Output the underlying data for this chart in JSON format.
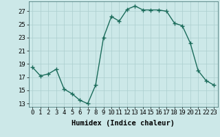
{
  "x": [
    0,
    1,
    2,
    3,
    4,
    5,
    6,
    7,
    8,
    9,
    10,
    11,
    12,
    13,
    14,
    15,
    16,
    17,
    18,
    19,
    20,
    21,
    22,
    23
  ],
  "y": [
    18.5,
    17.2,
    17.5,
    18.2,
    15.2,
    14.5,
    13.5,
    13.0,
    15.8,
    23.0,
    26.2,
    25.5,
    27.3,
    27.8,
    27.2,
    27.2,
    27.2,
    27.0,
    25.2,
    24.8,
    22.2,
    18.0,
    16.5,
    15.8
  ],
  "line_color": "#1a6b5a",
  "marker": "+",
  "marker_size": 4,
  "marker_lw": 1.0,
  "bg_color": "#cce8e8",
  "grid_color": "#aacece",
  "xlabel": "Humidex (Indice chaleur)",
  "xlim": [
    -0.5,
    23.5
  ],
  "ylim": [
    12.5,
    28.5
  ],
  "yticks": [
    13,
    15,
    17,
    19,
    21,
    23,
    25,
    27
  ],
  "xticks": [
    0,
    1,
    2,
    3,
    4,
    5,
    6,
    7,
    8,
    9,
    10,
    11,
    12,
    13,
    14,
    15,
    16,
    17,
    18,
    19,
    20,
    21,
    22,
    23
  ],
  "xlabel_fontsize": 7.5,
  "tick_fontsize": 6.5,
  "linewidth": 1.0
}
